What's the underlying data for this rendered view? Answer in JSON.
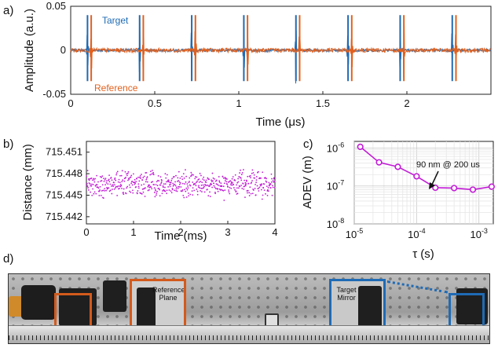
{
  "panels": {
    "a": "a)",
    "b": "b)",
    "c": "c)",
    "d": "d)"
  },
  "colors": {
    "target": "#1f6bb5",
    "reference": "#e2611e",
    "distance": "#c21bd6",
    "adev": "#c21bd6",
    "box_reference": "#d35a1c",
    "box_target": "#1f6bb5"
  },
  "chart_data": [
    {
      "type": "line",
      "panel": "a",
      "xlabel": "Time (μs)",
      "ylabel": "Amplitude (a.u.)",
      "xlim": [
        0,
        2.5
      ],
      "ylim": [
        -0.05,
        0.05
      ],
      "xticks": [
        "0",
        "0.5",
        "1",
        "1.5",
        "2"
      ],
      "yticks": [
        "0.05",
        "0",
        "-0.05"
      ],
      "series": [
        {
          "name": "Target",
          "pulse_times": [
            0.1,
            0.41,
            0.72,
            1.03,
            1.34,
            1.65,
            1.96,
            2.27
          ],
          "peak": 0.04,
          "trough": -0.035
        },
        {
          "name": "Reference",
          "pulse_times": [
            0.122,
            0.432,
            0.742,
            1.052,
            1.362,
            1.672,
            1.982,
            2.292
          ],
          "peak": 0.04,
          "trough": -0.035
        }
      ],
      "noise_amplitude": 0.002,
      "grid": false
    },
    {
      "type": "scatter",
      "panel": "b",
      "xlabel": "Time (ms)",
      "ylabel": "Distance (mm)",
      "xlim": [
        0,
        4
      ],
      "ylim": [
        715.441,
        715.4525
      ],
      "xticks": [
        "0",
        "1",
        "2",
        "3",
        "4"
      ],
      "yticks": [
        "715.451",
        "715.448",
        "715.445",
        "715.442"
      ],
      "n_points": 600,
      "mean": 715.4466,
      "spread": 0.0012,
      "grid": false
    },
    {
      "type": "line",
      "panel": "c",
      "xlabel": "τ (s)",
      "ylabel": "ADEV (m)",
      "xscale": "log",
      "yscale": "log",
      "xlim": [
        1e-05,
        0.0017
      ],
      "ylim": [
        1e-08,
        1.5e-06
      ],
      "xtick_labels": [
        {
          "base": "10",
          "exp": "-5"
        },
        {
          "base": "10",
          "exp": "-4"
        },
        {
          "base": "10",
          "exp": "-3"
        }
      ],
      "ytick_labels": [
        {
          "base": "10",
          "exp": "-6"
        },
        {
          "base": "10",
          "exp": "-7"
        },
        {
          "base": "10",
          "exp": "-8"
        }
      ],
      "x": [
        1.25e-05,
        2.5e-05,
        5e-05,
        0.0001,
        0.0002,
        0.0004,
        0.0008,
        0.0016
      ],
      "y": [
        1.08e-06,
        4.2e-07,
        3.2e-07,
        1.8e-07,
        9e-08,
        8.8e-08,
        8e-08,
        9.6e-08
      ],
      "annotation": "90 nm @ 200 us",
      "grid": true
    }
  ],
  "photo": {
    "reference_label": "Reference Plane",
    "target_label": "Target Mirror"
  }
}
